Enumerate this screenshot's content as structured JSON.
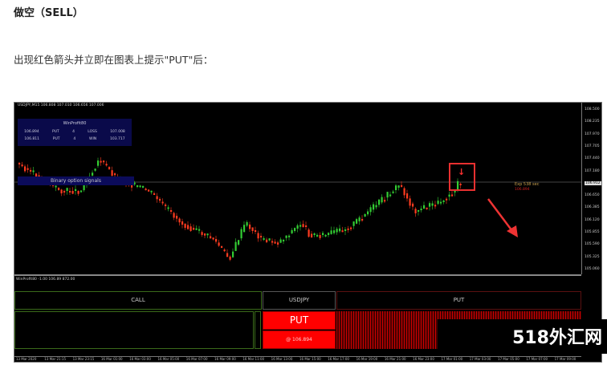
{
  "heading": "做空（SELL）",
  "paragraph": "出现红色箭头并立即在图表上提示\"PUT\"后：",
  "chart": {
    "title": "USDJPY,M15 106.808 107.010 106.656 107.006",
    "info": {
      "title": "WinProfit80",
      "rows": [
        [
          "106.894",
          "PUT",
          "4",
          "LOSS",
          "107.008"
        ],
        [
          "106.811",
          "PUT",
          "4",
          "WIN",
          "103.717"
        ]
      ]
    },
    "signal_label": "Binary option signals",
    "exp_text": "Exp 538 sec",
    "exp_price": "106.894",
    "price_ticks": [
      "108.500",
      "108.235",
      "107.970",
      "107.705",
      "107.440",
      "107.180",
      "106.912",
      "106.650",
      "106.385",
      "106.120",
      "105.855",
      "105.590",
      "105.325",
      "105.060"
    ],
    "current_price": "106.912",
    "sub_label": "WinProfit80 -1.00 106.89 872.00",
    "call_label": "CALL",
    "symbol": "USDJPY",
    "put_label": "PUT",
    "put_big": "PUT",
    "put_price": "@ 106.894",
    "time_ticks": [
      "13 Mar 2020",
      "13 Mar 21:15",
      "13 Mar 23:15",
      "16 Mar 01:00",
      "16 Mar 03:00",
      "16 Mar 05:00",
      "16 Mar 07:00",
      "16 Mar 09:00",
      "16 Mar 11:00",
      "16 Mar 13:00",
      "16 Mar 15:00",
      "16 Mar 17:00",
      "16 Mar 19:00",
      "16 Mar 21:00",
      "16 Mar 23:00",
      "17 Mar 01:00",
      "17 Mar 03:00",
      "17 Mar 05:00",
      "17 Mar 07:00",
      "17 Mar 09:00"
    ],
    "colors": {
      "up": "#33cc33",
      "down": "#ff3b1f",
      "put": "#ff0000",
      "highlight": "#e83030"
    }
  },
  "watermark": "518外汇网"
}
